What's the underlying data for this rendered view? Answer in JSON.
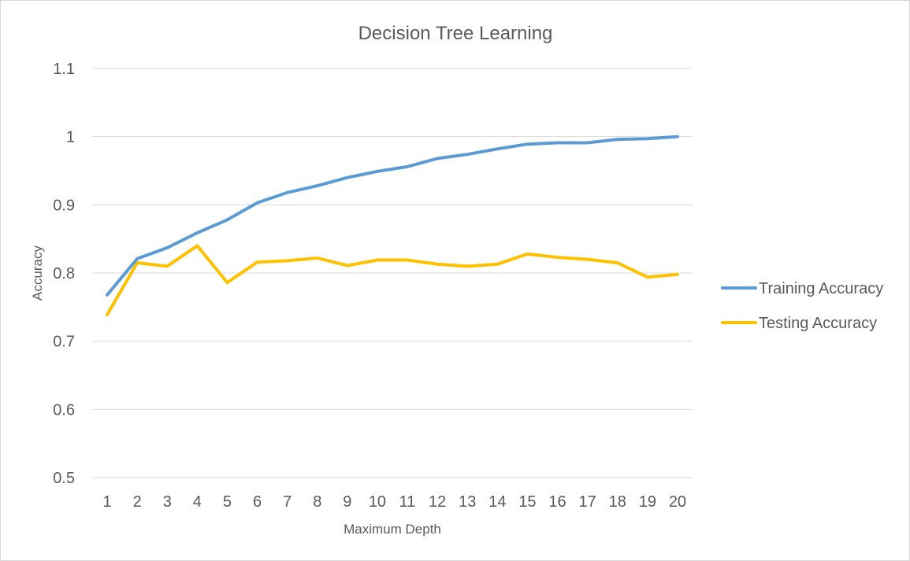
{
  "chart_data": {
    "type": "line",
    "title": "Decision Tree Learning",
    "xlabel": "Maximum Depth",
    "ylabel": "Accuracy",
    "x": [
      1,
      2,
      3,
      4,
      5,
      6,
      7,
      8,
      9,
      10,
      11,
      12,
      13,
      14,
      15,
      16,
      17,
      18,
      19,
      20
    ],
    "ylim": [
      0.5,
      1.1
    ],
    "yticks": [
      "0.5",
      "0.6",
      "0.7",
      "0.8",
      "0.9",
      "1",
      "1.1"
    ],
    "grid": true,
    "legend_position": "right",
    "series": [
      {
        "name": "Training Accuracy",
        "color": "#5B9BD5",
        "values": [
          0.768,
          0.821,
          0.837,
          0.859,
          0.878,
          0.903,
          0.918,
          0.928,
          0.94,
          0.949,
          0.956,
          0.968,
          0.974,
          0.982,
          0.989,
          0.991,
          0.991,
          0.996,
          0.997,
          1.0
        ]
      },
      {
        "name": "Testing Accuracy",
        "color": "#FFC000",
        "values": [
          0.739,
          0.815,
          0.81,
          0.84,
          0.786,
          0.816,
          0.818,
          0.822,
          0.811,
          0.819,
          0.819,
          0.813,
          0.81,
          0.813,
          0.828,
          0.823,
          0.82,
          0.815,
          0.794,
          0.798
        ]
      }
    ]
  }
}
